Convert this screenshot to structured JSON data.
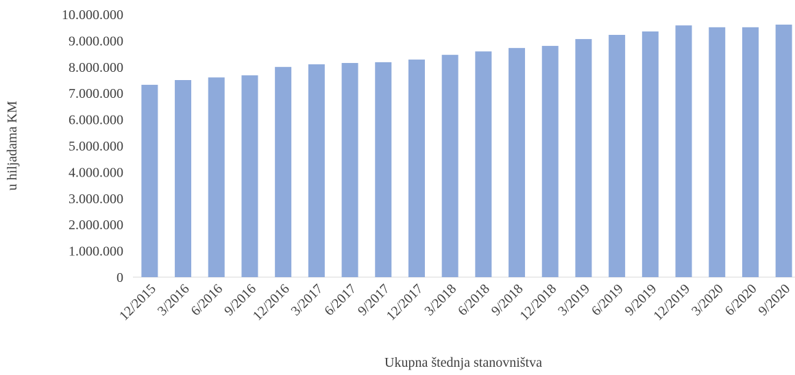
{
  "chart_data": {
    "type": "bar",
    "title": "Ukupna štednja stanovništva",
    "ylabel": "u hiljadama KM",
    "categories": [
      "12/2015",
      "3/2016",
      "6/2016",
      "9/2016",
      "12/2016",
      "3/2017",
      "6/2017",
      "9/2017",
      "12/2017",
      "3/2018",
      "6/2018",
      "9/2018",
      "12/2018",
      "3/2019",
      "6/2019",
      "9/2019",
      "12/2019",
      "3/2020",
      "6/2020",
      "9/2020"
    ],
    "values": [
      7320000,
      7500000,
      7600000,
      7680000,
      8000000,
      8100000,
      8150000,
      8180000,
      8280000,
      8460000,
      8590000,
      8720000,
      8800000,
      9060000,
      9220000,
      9350000,
      9580000,
      9510000,
      9510000,
      9610000
    ],
    "color": "#8eaadb",
    "ylim": [
      0,
      10000000
    ],
    "yticks": [
      0,
      {
        "value": 1000000,
        "label": "1.000.000"
      },
      {
        "value": 2000000,
        "label": "2.000.000"
      },
      {
        "value": 3000000,
        "label": "3.000.000"
      },
      {
        "value": 4000000,
        "label": "4.000.000"
      },
      {
        "value": 5000000,
        "label": "5.000.000"
      },
      {
        "value": 6000000,
        "label": "6.000.000"
      },
      {
        "value": 7000000,
        "label": "7.000.000"
      },
      {
        "value": 8000000,
        "label": "8.000.000"
      },
      {
        "value": 9000000,
        "label": "9.000.000"
      },
      {
        "value": 10000000,
        "label": "10.000.000"
      }
    ],
    "grid": false
  }
}
